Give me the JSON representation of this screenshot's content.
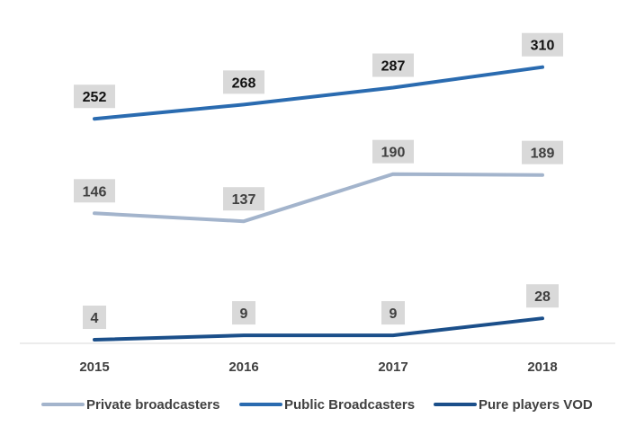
{
  "chart_data": {
    "type": "line",
    "title": "",
    "xlabel": "",
    "ylabel": "",
    "categories": [
      "2015",
      "2016",
      "2017",
      "2018"
    ],
    "ylim": [
      0,
      340
    ],
    "grid": false,
    "legend_position": "bottom",
    "series": [
      {
        "name": "Private broadcasters",
        "values": [
          146,
          137,
          190,
          189
        ],
        "color": "#a3b4cc",
        "label_color": "#404040",
        "label_bg": "#d9d9d9"
      },
      {
        "name": "Public Broadcasters",
        "values": [
          252,
          268,
          287,
          310
        ],
        "color": "#2a6bb0",
        "label_color": "#111111",
        "label_bg": "#d9d9d9"
      },
      {
        "name": "Pure players VOD",
        "values": [
          4,
          9,
          9,
          28
        ],
        "color": "#1b4f8a",
        "label_color": "#404040",
        "label_bg": "#d9d9d9"
      }
    ]
  }
}
